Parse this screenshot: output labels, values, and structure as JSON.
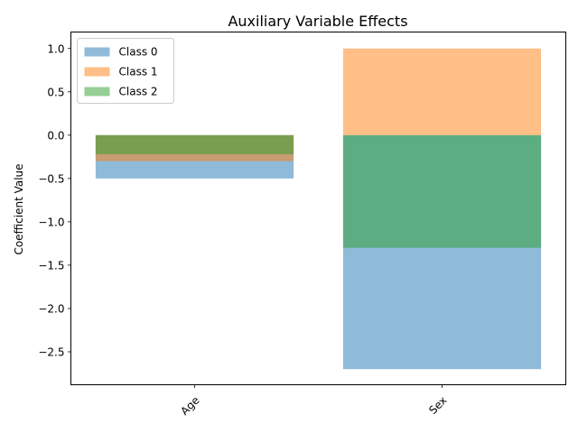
{
  "chart_data": {
    "type": "bar",
    "title": "Auxiliary Variable Effects",
    "xlabel": "",
    "ylabel": "Coefficient Value",
    "categories": [
      "Age",
      "Sex"
    ],
    "series": [
      {
        "name": "Class 0",
        "values": [
          -0.5,
          -2.7
        ],
        "color": "#1f77b4"
      },
      {
        "name": "Class 1",
        "values": [
          -0.3,
          1.0
        ],
        "color": "#ff7f0e"
      },
      {
        "name": "Class 2",
        "values": [
          -0.22,
          -1.3
        ],
        "color": "#2ca02c"
      }
    ],
    "bar_opacity": 0.5,
    "ylim": [
      -2.88,
      1.19
    ],
    "yticks": [
      1.0,
      0.5,
      0.0,
      -0.5,
      -1.0,
      -1.5,
      -2.0,
      -2.5
    ],
    "ytick_labels": [
      "1.0",
      "0.5",
      "0.0",
      "−0.5",
      "−1.0",
      "−1.5",
      "−2.0",
      "−2.5"
    ],
    "xtick_rotation": 45,
    "grid": false,
    "legend_position": "top-left"
  }
}
